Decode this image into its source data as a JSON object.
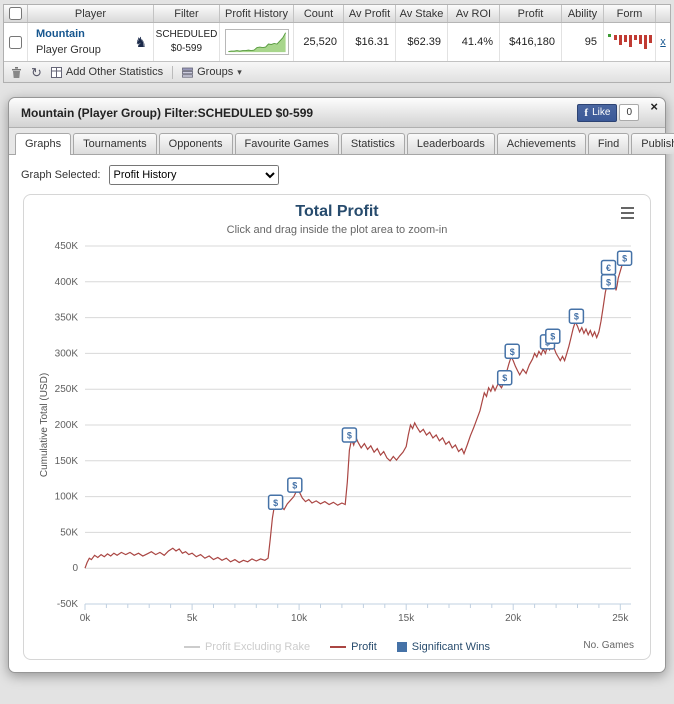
{
  "icons": {
    "player_badge": "♞",
    "refresh": "↻",
    "dropdown_arrow": "▾",
    "close": "×",
    "facebook_f": "f"
  },
  "stats_table": {
    "headers": {
      "player": "Player",
      "filter": "Filter",
      "profit_history": "Profit History",
      "count": "Count",
      "av_profit": "Av Profit",
      "av_stake": "Av Stake",
      "av_roi": "Av ROI",
      "profit": "Profit",
      "ability": "Ability",
      "form": "Form"
    },
    "row": {
      "player_name": "Mountain",
      "player_subtitle": "Player Group",
      "filter_line1": "SCHEDULED",
      "filter_line2": "$0-599",
      "count": "25,520",
      "av_profit": "$16.31",
      "av_stake": "$62.39",
      "av_roi": "41.4%",
      "profit": "$416,180",
      "ability": "95",
      "remove_link": "x"
    },
    "sparkline": [
      1,
      2,
      2,
      3,
      2,
      3,
      3,
      4,
      3,
      4,
      9,
      10,
      9,
      10,
      16,
      15,
      17,
      16,
      22,
      28,
      38
    ],
    "sparkline_colors": {
      "fill": "#a8d68c",
      "line": "#579a3e"
    },
    "form_bars": [
      5,
      10,
      7,
      12,
      5,
      9,
      14,
      8
    ],
    "form_colors": {
      "bar": "#c03b33",
      "lead": "#3d9b35"
    },
    "toolbar": {
      "add_other_statistics": "Add Other Statistics",
      "groups": "Groups"
    }
  },
  "panel": {
    "title": "Mountain (Player Group) Filter:SCHEDULED $0-599",
    "facebook": {
      "like": "Like",
      "count": "0"
    },
    "tabs": [
      {
        "label": "Graphs"
      },
      {
        "label": "Tournaments"
      },
      {
        "label": "Opponents"
      },
      {
        "label": "Favourite Games"
      },
      {
        "label": "Statistics"
      },
      {
        "label": "Leaderboards"
      },
      {
        "label": "Achievements"
      },
      {
        "label": "Find"
      },
      {
        "label": "Publish"
      }
    ],
    "active_tab": "Graphs",
    "graph_selector": {
      "label": "Graph Selected:",
      "value": "Profit History"
    }
  },
  "chart_data": {
    "type": "line",
    "title": "Total Profit",
    "subtitle": "Click and drag inside the plot area to zoom-in",
    "ylabel": "Cumulative Total (USD)",
    "xnote": "No. Games",
    "xlim": [
      0,
      25500
    ],
    "ylim": [
      -50000,
      450000
    ],
    "ytick_step": 50000,
    "ytick_labels": [
      "-50K",
      "0",
      "50K",
      "100K",
      "150K",
      "200K",
      "250K",
      "300K",
      "350K",
      "400K",
      "450K"
    ],
    "xticks": [
      0,
      5000,
      10000,
      15000,
      20000,
      25000
    ],
    "xtick_labels": [
      "0k",
      "5k",
      "10k",
      "15k",
      "20k",
      "25k"
    ],
    "minor_tick_step": 1000,
    "legend": [
      {
        "label": "Profit Excluding Rake",
        "type": "line",
        "color": "#cccccc",
        "disabled": true
      },
      {
        "label": "Profit",
        "type": "line",
        "color": "#AA4643",
        "disabled": false
      },
      {
        "label": "Significant Wins",
        "type": "square",
        "color": "#4572A7",
        "disabled": false
      }
    ],
    "series": [
      {
        "name": "Profit",
        "color": "#AA4643",
        "points": [
          [
            0,
            0
          ],
          [
            100,
            8000
          ],
          [
            200,
            14000
          ],
          [
            300,
            12000
          ],
          [
            450,
            18000
          ],
          [
            600,
            15000
          ],
          [
            750,
            19000
          ],
          [
            900,
            16000
          ],
          [
            1050,
            20000
          ],
          [
            1200,
            17000
          ],
          [
            1350,
            21000
          ],
          [
            1500,
            18000
          ],
          [
            1700,
            22000
          ],
          [
            1900,
            19000
          ],
          [
            2100,
            22000
          ],
          [
            2300,
            18000
          ],
          [
            2500,
            21000
          ],
          [
            2700,
            17000
          ],
          [
            2900,
            20000
          ],
          [
            3100,
            23000
          ],
          [
            3300,
            19000
          ],
          [
            3500,
            22000
          ],
          [
            3700,
            18000
          ],
          [
            3900,
            24000
          ],
          [
            4100,
            28000
          ],
          [
            4250,
            24000
          ],
          [
            4400,
            27000
          ],
          [
            4550,
            21000
          ],
          [
            4700,
            23000
          ],
          [
            4850,
            19000
          ],
          [
            5000,
            21000
          ],
          [
            5200,
            16000
          ],
          [
            5400,
            19000
          ],
          [
            5600,
            14000
          ],
          [
            5800,
            17000
          ],
          [
            6000,
            12000
          ],
          [
            6200,
            15000
          ],
          [
            6400,
            11000
          ],
          [
            6600,
            14000
          ],
          [
            6800,
            9000
          ],
          [
            7000,
            12000
          ],
          [
            7200,
            8000
          ],
          [
            7400,
            11000
          ],
          [
            7600,
            9000
          ],
          [
            7800,
            13000
          ],
          [
            8000,
            10000
          ],
          [
            8200,
            13000
          ],
          [
            8400,
            11000
          ],
          [
            8550,
            14000
          ],
          [
            8650,
            40000
          ],
          [
            8750,
            70000
          ],
          [
            8850,
            88000
          ],
          [
            8950,
            84000
          ],
          [
            9050,
            90000
          ],
          [
            9150,
            86000
          ],
          [
            9300,
            82000
          ],
          [
            9450,
            90000
          ],
          [
            9600,
            95000
          ],
          [
            9750,
            100000
          ],
          [
            9850,
            106000
          ],
          [
            9950,
            110000
          ],
          [
            10050,
            104000
          ],
          [
            10150,
            98000
          ],
          [
            10300,
            93000
          ],
          [
            10450,
            96000
          ],
          [
            10600,
            91000
          ],
          [
            10800,
            94000
          ],
          [
            11000,
            90000
          ],
          [
            11200,
            93000
          ],
          [
            11400,
            89000
          ],
          [
            11600,
            92000
          ],
          [
            11800,
            88000
          ],
          [
            12000,
            91000
          ],
          [
            12150,
            89000
          ],
          [
            12250,
            120000
          ],
          [
            12350,
            165000
          ],
          [
            12450,
            180000
          ],
          [
            12550,
            172000
          ],
          [
            12650,
            183000
          ],
          [
            12750,
            176000
          ],
          [
            12900,
            168000
          ],
          [
            13050,
            174000
          ],
          [
            13200,
            166000
          ],
          [
            13350,
            171000
          ],
          [
            13500,
            162000
          ],
          [
            13650,
            167000
          ],
          [
            13800,
            158000
          ],
          [
            13950,
            163000
          ],
          [
            14100,
            154000
          ],
          [
            14250,
            150000
          ],
          [
            14400,
            156000
          ],
          [
            14550,
            151000
          ],
          [
            14700,
            157000
          ],
          [
            14850,
            162000
          ],
          [
            15000,
            170000
          ],
          [
            15100,
            186000
          ],
          [
            15200,
            200000
          ],
          [
            15300,
            195000
          ],
          [
            15400,
            203000
          ],
          [
            15500,
            197000
          ],
          [
            15650,
            190000
          ],
          [
            15800,
            194000
          ],
          [
            15950,
            186000
          ],
          [
            16100,
            190000
          ],
          [
            16250,
            182000
          ],
          [
            16400,
            186000
          ],
          [
            16550,
            178000
          ],
          [
            16700,
            182000
          ],
          [
            16850,
            173000
          ],
          [
            17000,
            177000
          ],
          [
            17150,
            168000
          ],
          [
            17300,
            172000
          ],
          [
            17450,
            163000
          ],
          [
            17600,
            167000
          ],
          [
            17700,
            160000
          ],
          [
            17850,
            172000
          ],
          [
            18000,
            185000
          ],
          [
            18150,
            196000
          ],
          [
            18300,
            208000
          ],
          [
            18450,
            220000
          ],
          [
            18550,
            233000
          ],
          [
            18650,
            245000
          ],
          [
            18750,
            240000
          ],
          [
            18850,
            252000
          ],
          [
            18950,
            247000
          ],
          [
            19050,
            255000
          ],
          [
            19150,
            248000
          ],
          [
            19300,
            258000
          ],
          [
            19450,
            252000
          ],
          [
            19600,
            262000
          ],
          [
            19700,
            275000
          ],
          [
            19800,
            286000
          ],
          [
            19900,
            295000
          ],
          [
            20000,
            290000
          ],
          [
            20100,
            282000
          ],
          [
            20200,
            276000
          ],
          [
            20300,
            270000
          ],
          [
            20450,
            278000
          ],
          [
            20600,
            272000
          ],
          [
            20750,
            284000
          ],
          [
            20900,
            292000
          ],
          [
            21000,
            300000
          ],
          [
            21100,
            295000
          ],
          [
            21200,
            303000
          ],
          [
            21300,
            298000
          ],
          [
            21400,
            306000
          ],
          [
            21500,
            300000
          ],
          [
            21600,
            310000
          ],
          [
            21700,
            305000
          ],
          [
            21800,
            314000
          ],
          [
            21900,
            308000
          ],
          [
            22000,
            300000
          ],
          [
            22100,
            295000
          ],
          [
            22200,
            290000
          ],
          [
            22300,
            296000
          ],
          [
            22400,
            290000
          ],
          [
            22500,
            300000
          ],
          [
            22600,
            310000
          ],
          [
            22700,
            322000
          ],
          [
            22800,
            335000
          ],
          [
            22900,
            344000
          ],
          [
            23000,
            338000
          ],
          [
            23100,
            330000
          ],
          [
            23200,
            336000
          ],
          [
            23300,
            328000
          ],
          [
            23400,
            334000
          ],
          [
            23500,
            326000
          ],
          [
            23600,
            332000
          ],
          [
            23700,
            324000
          ],
          [
            23800,
            330000
          ],
          [
            23900,
            322000
          ],
          [
            24000,
            330000
          ],
          [
            24100,
            345000
          ],
          [
            24200,
            365000
          ],
          [
            24300,
            385000
          ],
          [
            24400,
            398000
          ],
          [
            24500,
            410000
          ],
          [
            24600,
            425000
          ],
          [
            24700,
            412000
          ],
          [
            24750,
            398000
          ],
          [
            24800,
            388000
          ],
          [
            24850,
            395000
          ],
          [
            24900,
            405000
          ],
          [
            25000,
            415000
          ],
          [
            25100,
            425000
          ],
          [
            25200,
            432000
          ]
        ]
      }
    ],
    "significant_wins": [
      {
        "x": 8900,
        "y": 92000,
        "symbol": "$"
      },
      {
        "x": 9800,
        "y": 116000,
        "symbol": "$"
      },
      {
        "x": 12350,
        "y": 186000,
        "symbol": "$"
      },
      {
        "x": 19600,
        "y": 266000,
        "symbol": "$"
      },
      {
        "x": 19950,
        "y": 303000,
        "symbol": "$"
      },
      {
        "x": 21600,
        "y": 316000,
        "symbol": "$"
      },
      {
        "x": 21850,
        "y": 324000,
        "symbol": "$"
      },
      {
        "x": 22950,
        "y": 352000,
        "symbol": "$"
      },
      {
        "x": 24450,
        "y": 420000,
        "symbol": "€"
      },
      {
        "x": 24450,
        "y": 400000,
        "symbol": "$"
      },
      {
        "x": 25200,
        "y": 433000,
        "symbol": "$"
      }
    ]
  }
}
